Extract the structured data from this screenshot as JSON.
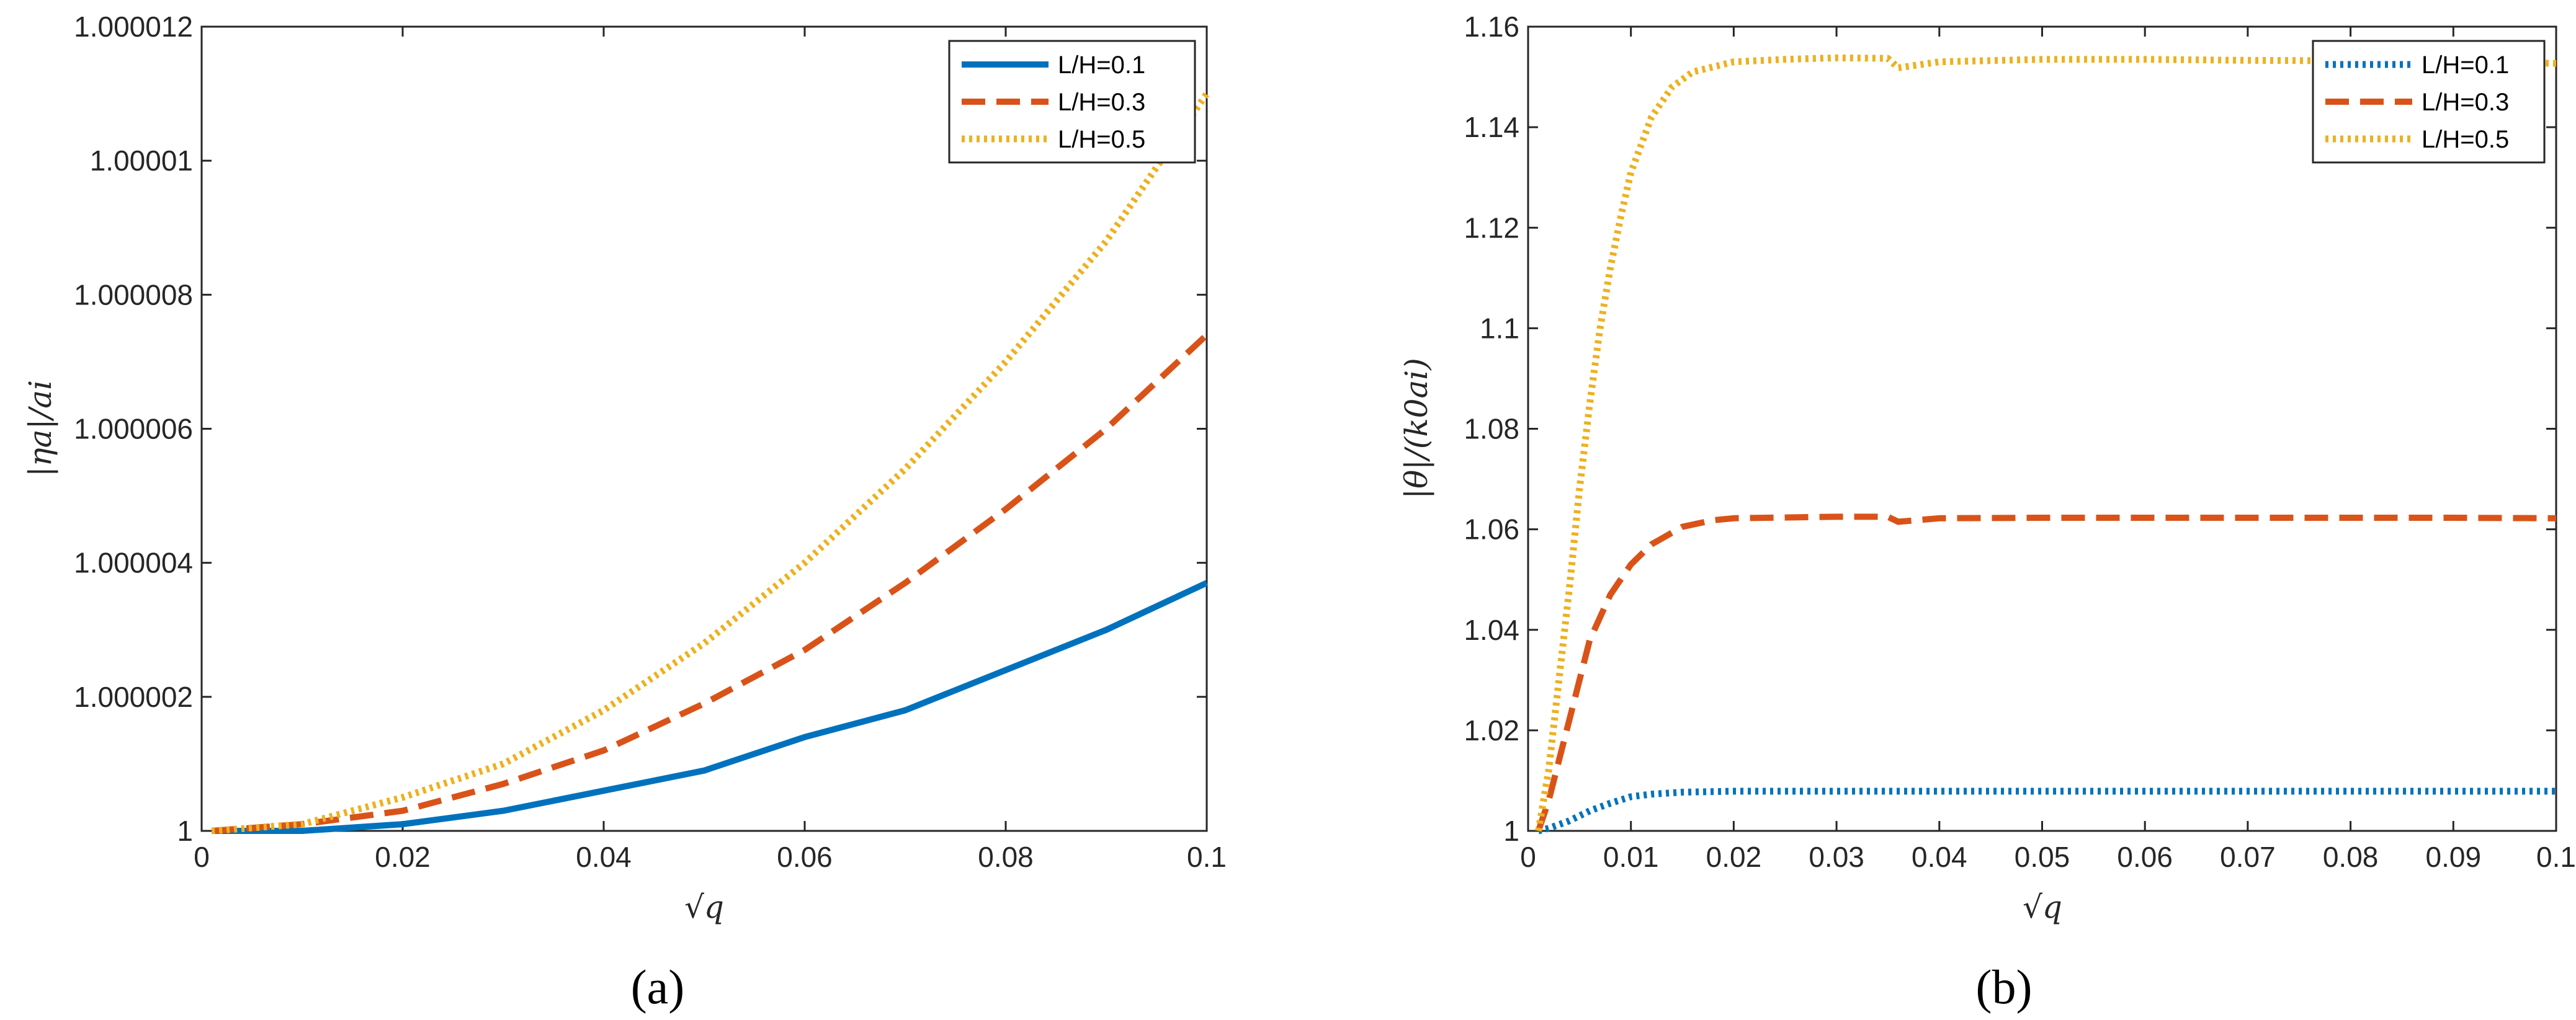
{
  "colors": {
    "blue": "#0072BD",
    "orange": "#D95319",
    "yellow": "#EDB120",
    "axis": "#262626"
  },
  "chart_data": [
    {
      "type": "line",
      "panel_caption": "(a)",
      "xlabel": "√q",
      "ylabel": "|ηa|/ai",
      "xlim": [
        0,
        0.1
      ],
      "ylim": [
        1,
        1.000012
      ],
      "x_ticks": [
        0,
        0.02,
        0.04,
        0.06,
        0.08,
        0.1
      ],
      "x_tick_labels": [
        "0",
        "0.02",
        "0.04",
        "0.06",
        "0.08",
        "0.1"
      ],
      "y_ticks": [
        1,
        1.000002,
        1.000004,
        1.000006,
        1.000008,
        1.00001,
        1.000012
      ],
      "y_tick_labels": [
        "1",
        "1.000002",
        "1.000004",
        "1.000006",
        "1.000008",
        "1.00001",
        "1.000012"
      ],
      "legend_position": "top-right",
      "series": [
        {
          "name": "L/H=0.1",
          "style": "solid",
          "color_key": "blue",
          "x": [
            0.001,
            0.01,
            0.02,
            0.03,
            0.04,
            0.05,
            0.06,
            0.07,
            0.08,
            0.09,
            0.1
          ],
          "y": [
            1.0,
            1.0,
            1.0000001,
            1.0000003,
            1.0000006,
            1.0000009,
            1.0000014,
            1.0000018,
            1.0000024,
            1.000003,
            1.0000037
          ]
        },
        {
          "name": "L/H=0.3",
          "style": "dashed",
          "color_key": "orange",
          "x": [
            0.001,
            0.01,
            0.02,
            0.03,
            0.04,
            0.05,
            0.06,
            0.07,
            0.08,
            0.09,
            0.1
          ],
          "y": [
            1.0,
            1.0000001,
            1.0000003,
            1.0000007,
            1.0000012,
            1.0000019,
            1.0000027,
            1.0000037,
            1.0000048,
            1.000006,
            1.0000074
          ]
        },
        {
          "name": "L/H=0.5",
          "style": "dotted",
          "color_key": "yellow",
          "x": [
            0.001,
            0.01,
            0.02,
            0.03,
            0.04,
            0.05,
            0.06,
            0.07,
            0.08,
            0.09,
            0.1
          ],
          "y": [
            1.0,
            1.0000001,
            1.0000005,
            1.000001,
            1.0000018,
            1.0000028,
            1.000004,
            1.0000054,
            1.000007,
            1.0000088,
            1.000011
          ]
        }
      ]
    },
    {
      "type": "line",
      "panel_caption": "(b)",
      "xlabel": "√q",
      "ylabel": "|θ|/(k0ai)",
      "xlim": [
        0,
        0.1
      ],
      "ylim": [
        1,
        1.16
      ],
      "x_ticks": [
        0,
        0.01,
        0.02,
        0.03,
        0.04,
        0.05,
        0.06,
        0.07,
        0.08,
        0.09,
        0.1
      ],
      "x_tick_labels": [
        "0",
        "0.01",
        "0.02",
        "0.03",
        "0.04",
        "0.05",
        "0.06",
        "0.07",
        "0.08",
        "0.09",
        "0.1"
      ],
      "y_ticks": [
        1,
        1.02,
        1.04,
        1.06,
        1.08,
        1.1,
        1.12,
        1.14,
        1.16
      ],
      "y_tick_labels": [
        "1",
        "1.02",
        "1.04",
        "1.06",
        "1.08",
        "1.1",
        "1.12",
        "1.14",
        "1.16"
      ],
      "legend_position": "top-right",
      "series": [
        {
          "name": "L/H=0.1",
          "style": "dotted",
          "color_key": "blue",
          "x": [
            0.001,
            0.002,
            0.004,
            0.006,
            0.008,
            0.01,
            0.012,
            0.015,
            0.02,
            0.03,
            0.04,
            0.05,
            0.06,
            0.07,
            0.08,
            0.09,
            0.1
          ],
          "y": [
            1.0,
            1.0005,
            1.002,
            1.004,
            1.0055,
            1.0068,
            1.0073,
            1.0077,
            1.0079,
            1.0079,
            1.0079,
            1.0079,
            1.0079,
            1.0079,
            1.0079,
            1.0079,
            1.0079
          ]
        },
        {
          "name": "L/H=0.3",
          "style": "dashed",
          "color_key": "orange",
          "x": [
            0.001,
            0.002,
            0.004,
            0.006,
            0.008,
            0.01,
            0.012,
            0.015,
            0.018,
            0.02,
            0.03,
            0.035,
            0.036,
            0.04,
            0.05,
            0.06,
            0.07,
            0.08,
            0.09,
            0.1
          ],
          "y": [
            1.0,
            1.006,
            1.022,
            1.038,
            1.047,
            1.053,
            1.057,
            1.0605,
            1.0618,
            1.0622,
            1.0625,
            1.0625,
            1.0615,
            1.0622,
            1.0623,
            1.0623,
            1.0623,
            1.0623,
            1.0623,
            1.0622
          ]
        },
        {
          "name": "L/H=0.5",
          "style": "dotted",
          "color_key": "yellow",
          "x": [
            0.001,
            0.002,
            0.003,
            0.004,
            0.005,
            0.006,
            0.007,
            0.008,
            0.009,
            0.01,
            0.012,
            0.014,
            0.016,
            0.018,
            0.02,
            0.025,
            0.03,
            0.035,
            0.036,
            0.04,
            0.05,
            0.06,
            0.07,
            0.08,
            0.09,
            0.1
          ],
          "y": [
            1.0,
            1.012,
            1.03,
            1.048,
            1.068,
            1.085,
            1.1,
            1.112,
            1.122,
            1.131,
            1.142,
            1.148,
            1.151,
            1.152,
            1.153,
            1.1535,
            1.1538,
            1.1537,
            1.1518,
            1.153,
            1.1535,
            1.1535,
            1.1533,
            1.1532,
            1.1531,
            1.1527
          ]
        }
      ]
    }
  ]
}
